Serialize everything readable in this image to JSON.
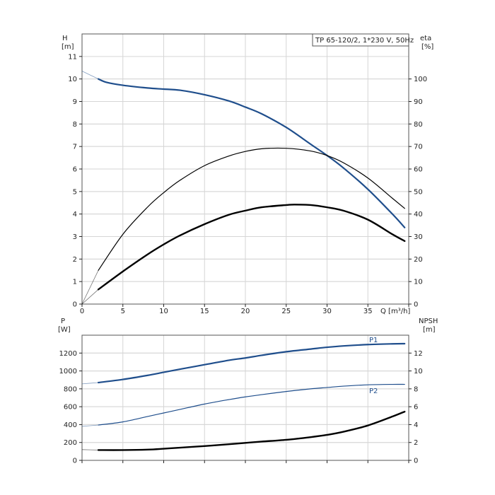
{
  "chart_data": [
    {
      "type": "line",
      "title": "TP 65-120/2, 1*230 V, 50Hz",
      "x_label": "Q [m³/h]",
      "y_label_left": [
        "H",
        "[m]"
      ],
      "y_label_right": [
        "eta",
        "[%]"
      ],
      "x_range": [
        0,
        40
      ],
      "y_range_left": [
        0,
        12
      ],
      "y_range_right": [
        0,
        120
      ],
      "x_ticks": [
        0,
        5,
        10,
        15,
        20,
        25,
        30,
        35
      ],
      "y_ticks_left": [
        0,
        1,
        2,
        3,
        4,
        5,
        6,
        7,
        8,
        9,
        10,
        11
      ],
      "y_ticks_right": [
        0,
        10,
        20,
        30,
        40,
        50,
        60,
        70,
        80,
        90,
        100
      ],
      "grid": true,
      "series": [
        {
          "axis": "left",
          "color": "#1f4e8c",
          "width": 2.2,
          "x": [
            2,
            3,
            5,
            8,
            10,
            12,
            15,
            18,
            20,
            22,
            25,
            28,
            30,
            32,
            35,
            38,
            39.5
          ],
          "y": [
            10.0,
            9.85,
            9.72,
            9.6,
            9.55,
            9.5,
            9.3,
            9.02,
            8.75,
            8.45,
            7.85,
            7.1,
            6.6,
            6.05,
            5.1,
            4.0,
            3.4
          ],
          "ext_x": [
            0,
            2
          ],
          "ext_y": [
            10.35,
            10.0
          ]
        },
        {
          "axis": "right",
          "color": "#000000",
          "width": 1.2,
          "x": [
            2,
            5,
            8,
            10,
            12,
            15,
            18,
            20,
            22,
            25,
            28,
            30,
            32,
            35,
            38,
            39.5
          ],
          "y": [
            15.0,
            31.0,
            43.0,
            49.5,
            55.0,
            61.5,
            65.8,
            67.8,
            69.0,
            69.2,
            68.0,
            66.0,
            62.8,
            56.0,
            47.0,
            42.5
          ],
          "ext_x": [
            0,
            2
          ],
          "ext_y": [
            0,
            15.0
          ]
        },
        {
          "axis": "left",
          "color": "#000000",
          "width": 2.4,
          "x": [
            2,
            5,
            8,
            10,
            12,
            15,
            18,
            20,
            22,
            25,
            26,
            28,
            30,
            32,
            35,
            38,
            39.5
          ],
          "y": [
            0.65,
            1.45,
            2.2,
            2.65,
            3.05,
            3.55,
            3.97,
            4.15,
            4.3,
            4.4,
            4.42,
            4.4,
            4.3,
            4.15,
            3.75,
            3.1,
            2.8
          ],
          "ext_x": [
            0,
            2
          ],
          "ext_y": [
            0,
            0.65
          ]
        }
      ]
    },
    {
      "type": "line",
      "y_label_left": [
        "P",
        "[W]"
      ],
      "y_label_right": [
        "NPSH",
        "[m]"
      ],
      "x_range": [
        0,
        40
      ],
      "y_range_left": [
        0,
        1400
      ],
      "y_range_right": [
        0,
        14
      ],
      "y_ticks_left": [
        0,
        200,
        400,
        600,
        800,
        1000,
        1200
      ],
      "y_ticks_right": [
        0,
        2,
        4,
        6,
        8,
        10,
        12
      ],
      "grid": true,
      "series": [
        {
          "name": "P1",
          "axis": "left",
          "color": "#1f4e8c",
          "width": 2.2,
          "x": [
            2,
            5,
            8,
            10,
            12,
            15,
            18,
            20,
            22,
            25,
            28,
            30,
            32,
            35,
            38,
            39.5
          ],
          "y": [
            870,
            905,
            950,
            985,
            1020,
            1070,
            1120,
            1145,
            1175,
            1215,
            1245,
            1265,
            1280,
            1295,
            1303,
            1305
          ],
          "ext_x": [
            0,
            2
          ],
          "ext_y": [
            855,
            870
          ]
        },
        {
          "name": "P2",
          "axis": "left",
          "color": "#1f4e8c",
          "width": 1.2,
          "x": [
            2,
            5,
            8,
            10,
            12,
            15,
            18,
            20,
            22,
            25,
            28,
            30,
            32,
            35,
            38,
            39.5
          ],
          "y": [
            395,
            430,
            490,
            530,
            570,
            630,
            680,
            710,
            735,
            770,
            800,
            815,
            830,
            845,
            850,
            850
          ],
          "ext_x": [
            0,
            2
          ],
          "ext_y": [
            380,
            395
          ]
        },
        {
          "name": "NPSH",
          "axis": "right",
          "color": "#000000",
          "width": 2.4,
          "x": [
            2,
            5,
            8,
            10,
            12,
            15,
            18,
            20,
            22,
            25,
            28,
            30,
            32,
            35,
            38,
            39.5
          ],
          "y": [
            1.15,
            1.15,
            1.2,
            1.3,
            1.42,
            1.6,
            1.8,
            1.95,
            2.1,
            2.3,
            2.6,
            2.85,
            3.2,
            3.9,
            4.9,
            5.45
          ],
          "ext_x": [
            0,
            2
          ],
          "ext_y": [
            1.2,
            1.15
          ]
        }
      ]
    }
  ]
}
